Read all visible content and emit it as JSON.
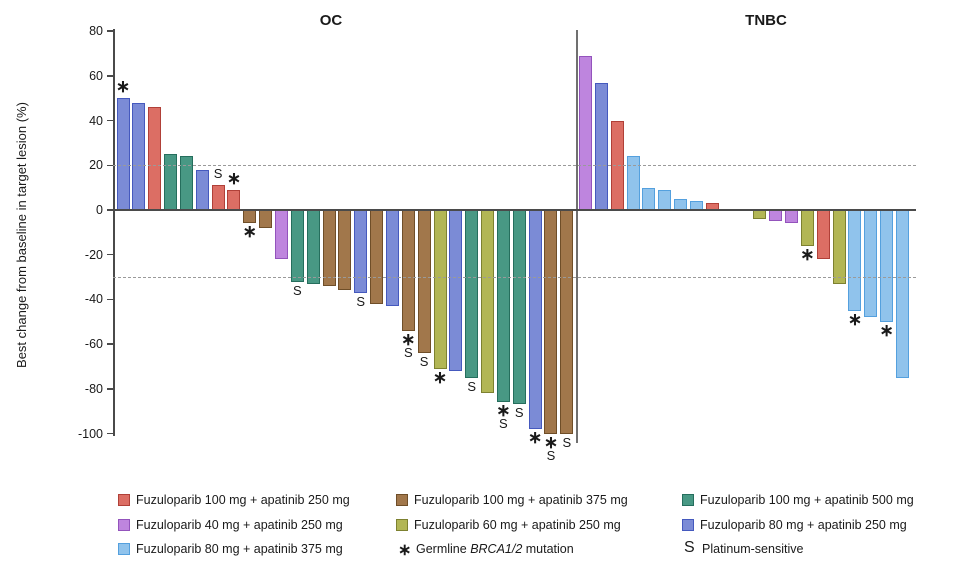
{
  "chart_data": {
    "type": "bar",
    "subtype": "waterfall",
    "title": "",
    "ylabel": "Best change from baseline in target lesion (%)",
    "ylim": [
      -100,
      80
    ],
    "yticks": [
      80,
      60,
      40,
      20,
      0,
      -20,
      -40,
      -60,
      -80,
      -100
    ],
    "reference_lines": [
      20,
      -30
    ],
    "grid": false,
    "legend_position": "bottom",
    "groups": {
      "f100a250": {
        "label": "Fuzuloparib 100 mg + apatinib 250 mg",
        "fill": "#DC6E64",
        "stroke": "#B04038"
      },
      "f40a250": {
        "label": "Fuzuloparib 40 mg + apatinib 250 mg",
        "fill": "#BE85DE",
        "stroke": "#9353BC"
      },
      "f80a375": {
        "label": "Fuzuloparib 80 mg + apatinib 375 mg",
        "fill": "#90C3EC",
        "stroke": "#54A0DE"
      },
      "f100a375": {
        "label": "Fuzuloparib 100 mg + apatinib 375 mg",
        "fill": "#A1774B",
        "stroke": "#6F4E28"
      },
      "f60a250": {
        "label": "Fuzuloparib 60 mg + apatinib 250 mg",
        "fill": "#B2B655",
        "stroke": "#7D8130"
      },
      "f100a500": {
        "label": "Fuzuloparib 100 mg + apatinib 500 mg",
        "fill": "#489884",
        "stroke": "#256E5D"
      },
      "f80a250": {
        "label": "Fuzuloparib 80 mg + apatinib 250 mg",
        "fill": "#7B8BD6",
        "stroke": "#4559BE"
      }
    },
    "flag_meanings": {
      "*": "Germline BRCA1/2 mutation",
      "S": "Platinum-sensitive"
    },
    "panels": [
      {
        "title": "OC",
        "bars": [
          {
            "group": "f80a250",
            "value": 50,
            "flags": [
              "*"
            ]
          },
          {
            "group": "f80a250",
            "value": 48
          },
          {
            "group": "f100a250",
            "value": 46
          },
          {
            "group": "f100a500",
            "value": 25
          },
          {
            "group": "f100a500",
            "value": 24
          },
          {
            "group": "f80a250",
            "value": 18
          },
          {
            "group": "f100a250",
            "value": 11,
            "flags": [
              "S"
            ]
          },
          {
            "group": "f100a250",
            "value": 9,
            "flags": [
              "*"
            ]
          },
          {
            "group": "f100a375",
            "value": -6,
            "flags": [
              "*"
            ]
          },
          {
            "group": "f100a375",
            "value": -8
          },
          {
            "group": "f40a250",
            "value": -22
          },
          {
            "group": "f100a500",
            "value": -32,
            "flags": [
              "S"
            ]
          },
          {
            "group": "f100a500",
            "value": -33
          },
          {
            "group": "f100a375",
            "value": -34
          },
          {
            "group": "f100a375",
            "value": -36
          },
          {
            "group": "f80a250",
            "value": -37,
            "flags": [
              "S"
            ]
          },
          {
            "group": "f100a375",
            "value": -42
          },
          {
            "group": "f80a250",
            "value": -43
          },
          {
            "group": "f100a375",
            "value": -54,
            "flags": [
              "*",
              "S"
            ]
          },
          {
            "group": "f100a375",
            "value": -64,
            "flags": [
              "S"
            ]
          },
          {
            "group": "f60a250",
            "value": -71,
            "flags": [
              "*"
            ]
          },
          {
            "group": "f80a250",
            "value": -72
          },
          {
            "group": "f100a500",
            "value": -75,
            "flags": [
              "S"
            ]
          },
          {
            "group": "f60a250",
            "value": -82
          },
          {
            "group": "f100a500",
            "value": -86,
            "flags": [
              "*",
              "S"
            ]
          },
          {
            "group": "f100a500",
            "value": -87,
            "flags": [
              "S"
            ]
          },
          {
            "group": "f80a250",
            "value": -98,
            "flags": [
              "*"
            ]
          },
          {
            "group": "f100a375",
            "value": -100,
            "flags": [
              "*",
              "S"
            ]
          },
          {
            "group": "f100a375",
            "value": -100,
            "flags": [
              "S"
            ]
          }
        ]
      },
      {
        "title": "TNBC",
        "gap_after_index": 8,
        "gap_slots": 2,
        "bars": [
          {
            "group": "f40a250",
            "value": 69
          },
          {
            "group": "f80a250",
            "value": 57
          },
          {
            "group": "f100a250",
            "value": 40
          },
          {
            "group": "f80a375",
            "value": 24
          },
          {
            "group": "f80a375",
            "value": 10
          },
          {
            "group": "f80a375",
            "value": 9
          },
          {
            "group": "f80a375",
            "value": 5
          },
          {
            "group": "f80a375",
            "value": 4
          },
          {
            "group": "f100a250",
            "value": 3
          },
          {
            "group": "f60a250",
            "value": -4
          },
          {
            "group": "f40a250",
            "value": -5
          },
          {
            "group": "f40a250",
            "value": -6
          },
          {
            "group": "f60a250",
            "value": -16,
            "flags": [
              "*"
            ]
          },
          {
            "group": "f100a250",
            "value": -22
          },
          {
            "group": "f60a250",
            "value": -33
          },
          {
            "group": "f80a375",
            "value": -45,
            "flags": [
              "*"
            ]
          },
          {
            "group": "f80a375",
            "value": -48
          },
          {
            "group": "f80a375",
            "value": -50,
            "flags": [
              "*"
            ]
          },
          {
            "group": "f80a375",
            "value": -75
          }
        ]
      }
    ],
    "legend": {
      "rows": [
        [
          {
            "group": "f100a250"
          },
          {
            "group": "f100a375"
          },
          {
            "group": "f100a500"
          }
        ],
        [
          {
            "group": "f40a250"
          },
          {
            "group": "f60a250"
          },
          {
            "group": "f80a250"
          }
        ],
        [
          {
            "group": "f80a375"
          },
          {
            "symbol": "*",
            "label_parts": [
              {
                "t": "Germline "
              },
              {
                "t": "BRCA1/2",
                "italic": true
              },
              {
                "t": " mutation"
              }
            ]
          },
          {
            "symbol": "S",
            "label_parts": [
              {
                "t": "Platinum-sensitive"
              }
            ]
          }
        ]
      ]
    }
  }
}
